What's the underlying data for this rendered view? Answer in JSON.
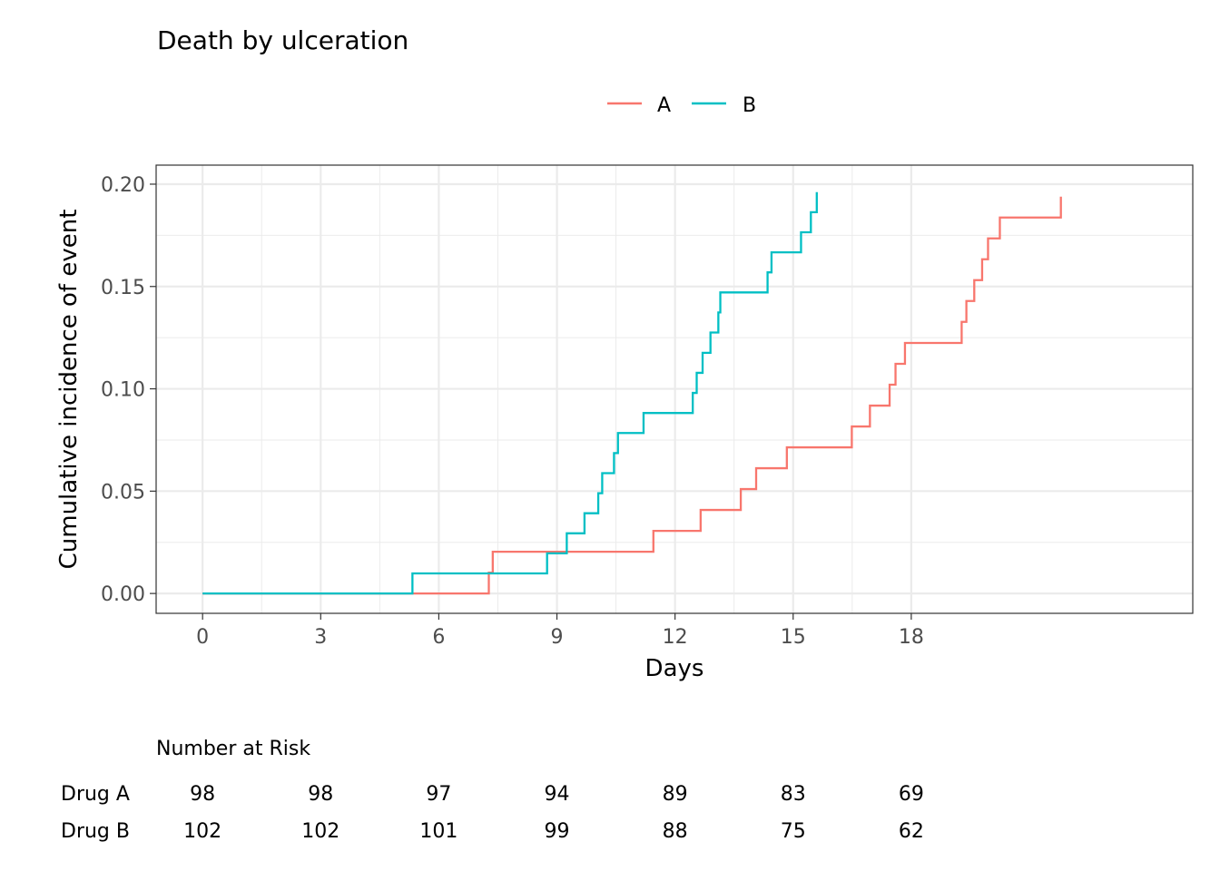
{
  "chart_data": {
    "type": "line",
    "title": "Death by ulceration",
    "xlabel": "Days",
    "ylabel": "Cumulative incidence of event",
    "xlim": [
      -1.18,
      25.15
    ],
    "ylim": [
      -0.0097,
      0.2093
    ],
    "x_ticks": [
      0,
      3,
      6,
      9,
      12,
      15,
      18
    ],
    "x_tick_labels": [
      "0",
      "3",
      "6",
      "9",
      "12",
      "15",
      "18"
    ],
    "y_ticks": [
      0,
      0.05,
      0.1,
      0.15,
      0.2
    ],
    "y_tick_labels": [
      "0.00",
      "0.05",
      "0.10",
      "0.15",
      "0.20"
    ],
    "grid": true,
    "legend_position": "top",
    "series": [
      {
        "name": "A",
        "color": "#F8766D",
        "step_x": [
          0,
          7.27,
          7.37,
          11.45,
          12.65,
          13.67,
          14.06,
          14.84,
          16.49,
          16.95,
          17.45,
          17.6,
          17.84,
          19.28,
          19.4,
          19.6,
          19.8,
          19.95,
          20.25,
          21.8
        ],
        "step_y": [
          0,
          0.0102,
          0.0204,
          0.0306,
          0.0408,
          0.051,
          0.0612,
          0.0714,
          0.0816,
          0.0918,
          0.102,
          0.1122,
          0.1224,
          0.1327,
          0.1429,
          0.1531,
          0.1633,
          0.1735,
          0.1837,
          0.1939
        ]
      },
      {
        "name": "B",
        "color": "#00BFC4",
        "step_x": [
          0,
          5.33,
          8.75,
          9.25,
          9.7,
          10.05,
          10.15,
          10.45,
          10.55,
          11.2,
          12.45,
          12.55,
          12.7,
          12.9,
          13.1,
          13.15,
          14.35,
          14.45,
          15.2,
          15.45,
          15.6
        ],
        "step_y": [
          0,
          0.0098,
          0.0196,
          0.0294,
          0.0392,
          0.049,
          0.0588,
          0.0686,
          0.0784,
          0.0882,
          0.098,
          0.1078,
          0.1176,
          0.1275,
          0.1373,
          0.1471,
          0.1569,
          0.1667,
          0.1765,
          0.1863,
          0.1961
        ]
      }
    ],
    "risk_table": {
      "title": "Number at Risk",
      "times": [
        0,
        3,
        6,
        9,
        12,
        15,
        18
      ],
      "rows": [
        {
          "label": "Drug A",
          "values": [
            "98",
            "98",
            "97",
            "94",
            "89",
            "83",
            "69"
          ]
        },
        {
          "label": "Drug B",
          "values": [
            "102",
            "102",
            "101",
            "99",
            "88",
            "75",
            "62"
          ]
        }
      ]
    }
  }
}
